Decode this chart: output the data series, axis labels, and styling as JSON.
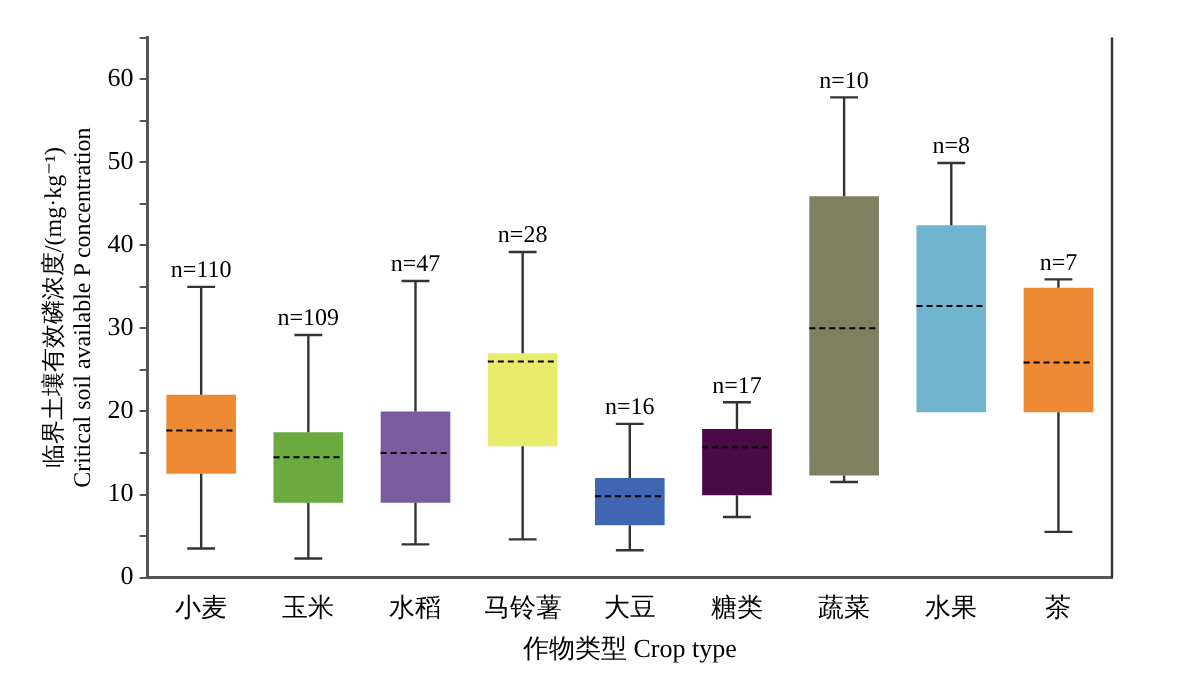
{
  "chart_data": {
    "type": "box",
    "xlabel": "作物类型 Crop type",
    "ylabel": "临界土壤有效磷浓度/(mg·kg⁻¹)\nCritical soil available P concentration",
    "categories": [
      "小麦",
      "玉米",
      "水稻",
      "马铃薯",
      "大豆",
      "糖类",
      "蔬菜",
      "水果",
      "茶"
    ],
    "colors": [
      "#ee8a33",
      "#6aaa3e",
      "#7a5c9e",
      "#e8ec6a",
      "#3f65b3",
      "#4a0a45",
      "#7f8060",
      "#70b4cf",
      "#ee8a33"
    ],
    "boxes": [
      {
        "low": 3.5,
        "q1": 12.5,
        "median": 17.7,
        "q3": 22,
        "high": 35
      },
      {
        "low": 2.3,
        "q1": 9,
        "median": 14.5,
        "q3": 17.5,
        "high": 29.2
      },
      {
        "low": 4,
        "q1": 9,
        "median": 15,
        "q3": 20,
        "high": 35.7
      },
      {
        "low": 4.6,
        "q1": 15.8,
        "median": 26,
        "q3": 27,
        "high": 39.2
      },
      {
        "low": 3.3,
        "q1": 6.3,
        "median": 9.8,
        "q3": 12,
        "high": 18.5
      },
      {
        "low": 7.3,
        "q1": 9.9,
        "median": 15.7,
        "q3": 17.9,
        "high": 21.1
      },
      {
        "low": 11.5,
        "q1": 12.3,
        "median": 30,
        "q3": 45.9,
        "high": 57.8
      },
      {
        "low": 19.9,
        "q1": 19.9,
        "median": 32.7,
        "q3": 42.4,
        "high": 49.9
      },
      {
        "low": 5.5,
        "q1": 19.9,
        "median": 25.9,
        "q3": 34.9,
        "high": 35.9
      }
    ],
    "ylim": [
      0,
      65
    ],
    "yticks": [
      0,
      {
        "value": 5,
        "label": null
      },
      10,
      {
        "value": 15,
        "label": null
      },
      20,
      {
        "value": 25,
        "label": null
      },
      30,
      {
        "value": 35,
        "label": null
      },
      40,
      {
        "value": 45,
        "label": null
      },
      50,
      {
        "value": 55,
        "label": null
      },
      60,
      {
        "value": 65,
        "label": null
      }
    ],
    "grid": false,
    "legend": false,
    "annotations": [
      {
        "text": "n=110",
        "x": "小麦",
        "y": 35
      },
      {
        "text": "n=109",
        "x": "玉米",
        "y": 29.2
      },
      {
        "text": "n=47",
        "x": "水稻",
        "y": 35.7
      },
      {
        "text": "n=28",
        "x": "马铃薯",
        "y": 39.2
      },
      {
        "text": "n=16",
        "x": "大豆",
        "y": 18.5
      },
      {
        "text": "n=17",
        "x": "糖类",
        "y": 21.1
      },
      {
        "text": "n=10",
        "x": "蔬菜",
        "y": 57.8
      },
      {
        "text": "n=8",
        "x": "水果",
        "y": 49.9
      },
      {
        "text": "n=7",
        "x": "茶",
        "y": 35.9
      }
    ]
  }
}
